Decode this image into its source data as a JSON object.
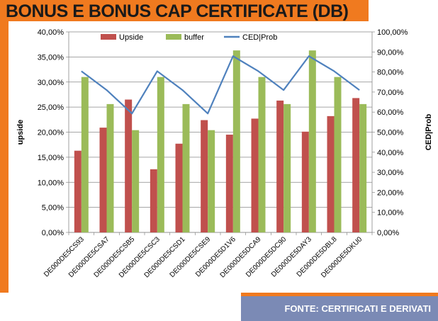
{
  "page": {
    "title": "BONUS E BONUS CAP CERTIFICATE (DB)",
    "source_prefix": "FONTE: ",
    "source_name": "CERTIFICATI E DERIVATI"
  },
  "colors": {
    "background_frame": "#f07a1f",
    "upside": "#c0504d",
    "buffer": "#9bbb59",
    "ced_prob": "#4f81bd",
    "source_bar": "#7b8ab5"
  },
  "chart_data": {
    "type": "bar",
    "title": "",
    "categories": [
      "DE000DE5CS93",
      "DE000DE5CSA7",
      "DE000DE5CSB5",
      "DE000DE5CSC3",
      "DE000DE5CSD1",
      "DE000DE5CSE9",
      "DE000DE5D1V6",
      "DE000DE5DCA9",
      "DE000DE5DC90",
      "DE000DE5DAY3",
      "DE000DE5DBL8",
      "DE000DE5DKU0"
    ],
    "series": [
      {
        "name": "Upside",
        "type": "bar",
        "axis": "left",
        "values": [
          16.3,
          20.9,
          26.5,
          12.6,
          17.7,
          22.4,
          19.5,
          22.7,
          26.3,
          20.1,
          23.2,
          26.8
        ]
      },
      {
        "name": "buffer",
        "type": "bar",
        "axis": "left",
        "values": [
          31.0,
          25.6,
          20.4,
          31.0,
          25.6,
          20.4,
          36.3,
          31.0,
          25.6,
          36.3,
          31.0,
          25.6
        ]
      },
      {
        "name": "CED|Prob",
        "type": "line",
        "axis": "right",
        "values": [
          80.4,
          71.0,
          59.3,
          80.4,
          71.0,
          59.3,
          87.9,
          80.4,
          71.0,
          87.9,
          80.4,
          71.0
        ]
      }
    ],
    "ylabel": "upside",
    "y2label": "CED|Prob",
    "ylim": [
      0,
      40
    ],
    "y2lim": [
      0,
      100
    ],
    "yticks": [
      "0,00%",
      "5,00%",
      "10,00%",
      "15,00%",
      "20,00%",
      "25,00%",
      "30,00%",
      "35,00%",
      "40,00%"
    ],
    "y2ticks": [
      "0,00%",
      "10,00%",
      "20,00%",
      "30,00%",
      "40,00%",
      "50,00%",
      "60,00%",
      "70,00%",
      "80,00%",
      "90,00%",
      "100,00%"
    ],
    "grid": true,
    "legend": "top-center"
  }
}
